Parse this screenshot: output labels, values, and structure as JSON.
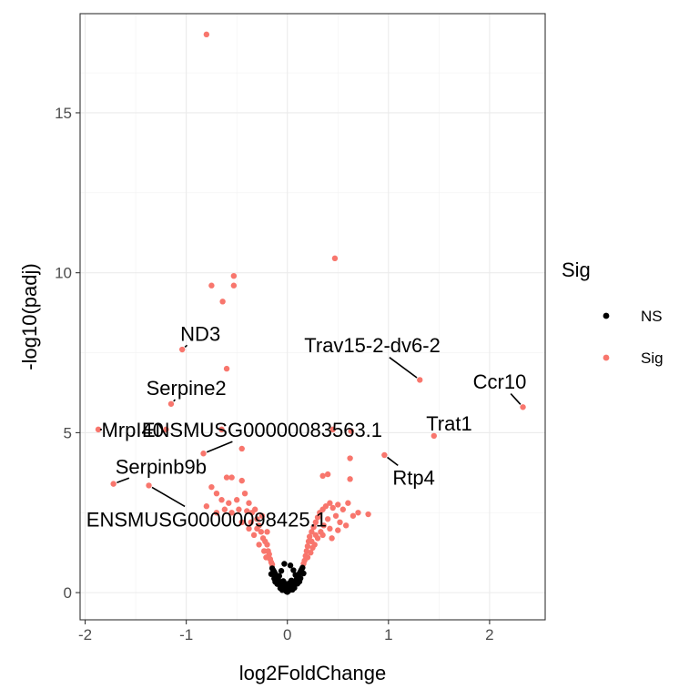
{
  "chart_data": {
    "type": "scatter",
    "xlabel": "log2FoldChange",
    "ylabel": "-log10(padj)",
    "xlim": [
      -2.05,
      2.55
    ],
    "ylim": [
      -0.85,
      18.1
    ],
    "x_ticks": [
      -2,
      -1,
      0,
      1,
      2
    ],
    "y_ticks": [
      0,
      5,
      10,
      15
    ],
    "grid": true,
    "legend": {
      "title": "Sig",
      "placement": "right",
      "entries": [
        {
          "name": "NS",
          "color": "#000000"
        },
        {
          "name": "Sig",
          "color": "#F8766D"
        }
      ]
    },
    "series": [
      {
        "name": "NS",
        "color": "#000000",
        "points": [
          [
            0.0,
            0.02
          ],
          [
            0.01,
            0.05
          ],
          [
            -0.01,
            0.04
          ],
          [
            0.02,
            0.08
          ],
          [
            -0.02,
            0.07
          ],
          [
            0.03,
            0.12
          ],
          [
            -0.03,
            0.11
          ],
          [
            0.04,
            0.16
          ],
          [
            -0.04,
            0.15
          ],
          [
            0.05,
            0.2
          ],
          [
            -0.05,
            0.19
          ],
          [
            0.06,
            0.25
          ],
          [
            -0.06,
            0.24
          ],
          [
            0.07,
            0.3
          ],
          [
            -0.07,
            0.29
          ],
          [
            0.08,
            0.35
          ],
          [
            -0.08,
            0.34
          ],
          [
            0.09,
            0.41
          ],
          [
            -0.09,
            0.4
          ],
          [
            0.1,
            0.47
          ],
          [
            -0.1,
            0.46
          ],
          [
            0.11,
            0.53
          ],
          [
            -0.11,
            0.52
          ],
          [
            0.12,
            0.6
          ],
          [
            -0.12,
            0.59
          ],
          [
            0.13,
            0.66
          ],
          [
            -0.13,
            0.65
          ],
          [
            0.14,
            0.72
          ],
          [
            -0.14,
            0.7
          ],
          [
            0.15,
            0.78
          ],
          [
            -0.15,
            0.76
          ],
          [
            0.13,
            0.45
          ],
          [
            -0.13,
            0.44
          ],
          [
            0.1,
            0.28
          ],
          [
            -0.1,
            0.27
          ],
          [
            0.07,
            0.15
          ],
          [
            -0.07,
            0.14
          ],
          [
            0.05,
            0.09
          ],
          [
            -0.05,
            0.08
          ],
          [
            0.12,
            0.35
          ],
          [
            -0.12,
            0.34
          ],
          [
            0.0,
            0.1
          ],
          [
            0.01,
            0.2
          ],
          [
            -0.01,
            0.18
          ],
          [
            0.02,
            0.3
          ],
          [
            -0.02,
            0.28
          ],
          [
            0.16,
            0.6
          ],
          [
            -0.16,
            0.58
          ],
          [
            0.08,
            0.55
          ],
          [
            -0.08,
            0.52
          ],
          [
            0.04,
            0.38
          ],
          [
            -0.04,
            0.36
          ],
          [
            0.0,
            0.25
          ],
          [
            -0.03,
            0.9
          ],
          [
            0.03,
            0.85
          ],
          [
            0.06,
            0.7
          ],
          [
            -0.06,
            0.68
          ]
        ]
      },
      {
        "name": "Sig",
        "color": "#F8766D",
        "points": [
          [
            -0.8,
            17.45
          ],
          [
            0.47,
            10.45
          ],
          [
            -0.53,
            9.9
          ],
          [
            -0.75,
            9.6
          ],
          [
            -0.53,
            9.6
          ],
          [
            -0.64,
            9.1
          ],
          [
            -1.04,
            7.6
          ],
          [
            1.31,
            6.65
          ],
          [
            -0.6,
            7.0
          ],
          [
            -1.15,
            5.9
          ],
          [
            2.33,
            5.8
          ],
          [
            -1.87,
            5.1
          ],
          [
            -1.2,
            5.1
          ],
          [
            -0.65,
            5.1
          ],
          [
            0.45,
            5.1
          ],
          [
            0.63,
            5.05
          ],
          [
            1.45,
            4.9
          ],
          [
            -0.83,
            4.35
          ],
          [
            0.96,
            4.3
          ],
          [
            -0.45,
            4.5
          ],
          [
            0.62,
            4.2
          ],
          [
            -1.37,
            3.35
          ],
          [
            -1.72,
            3.4
          ],
          [
            0.62,
            3.55
          ],
          [
            0.35,
            3.65
          ],
          [
            0.4,
            3.7
          ],
          [
            0.8,
            2.45
          ],
          [
            -0.75,
            3.3
          ],
          [
            -0.6,
            3.6
          ],
          [
            -0.55,
            3.6
          ],
          [
            -0.45,
            3.5
          ],
          [
            -0.7,
            3.1
          ],
          [
            -0.65,
            2.9
          ],
          [
            -0.58,
            2.8
          ],
          [
            -0.5,
            2.9
          ],
          [
            -0.42,
            3.1
          ],
          [
            -0.38,
            2.8
          ],
          [
            -0.35,
            2.5
          ],
          [
            -0.32,
            2.6
          ],
          [
            -0.3,
            2.3
          ],
          [
            -0.28,
            2.1
          ],
          [
            -0.26,
            1.9
          ],
          [
            -0.24,
            1.7
          ],
          [
            -0.22,
            1.6
          ],
          [
            -0.2,
            1.5
          ],
          [
            -0.19,
            1.3
          ],
          [
            -0.18,
            1.2
          ],
          [
            -0.17,
            1.05
          ],
          [
            -0.25,
            2.4
          ],
          [
            -0.3,
            2.0
          ],
          [
            -0.33,
            1.8
          ],
          [
            -0.36,
            2.2
          ],
          [
            -0.4,
            2.55
          ],
          [
            -0.48,
            2.6
          ],
          [
            -0.55,
            2.5
          ],
          [
            -0.62,
            2.6
          ],
          [
            -0.7,
            2.5
          ],
          [
            -0.8,
            2.7
          ],
          [
            -0.45,
            2.2
          ],
          [
            -0.38,
            2.0
          ],
          [
            -0.28,
            1.5
          ],
          [
            -0.23,
            1.3
          ],
          [
            -0.21,
            1.1
          ],
          [
            -0.2,
            1.9
          ],
          [
            -0.16,
            0.95
          ],
          [
            0.17,
            1.0
          ],
          [
            0.18,
            1.15
          ],
          [
            0.19,
            1.3
          ],
          [
            0.2,
            1.45
          ],
          [
            0.21,
            1.6
          ],
          [
            0.22,
            1.75
          ],
          [
            0.24,
            1.9
          ],
          [
            0.26,
            2.05
          ],
          [
            0.28,
            2.2
          ],
          [
            0.3,
            2.35
          ],
          [
            0.32,
            2.5
          ],
          [
            0.35,
            2.6
          ],
          [
            0.38,
            2.7
          ],
          [
            0.42,
            2.8
          ],
          [
            0.45,
            2.65
          ],
          [
            0.5,
            2.75
          ],
          [
            0.55,
            2.6
          ],
          [
            0.6,
            2.8
          ],
          [
            0.48,
            2.4
          ],
          [
            0.4,
            2.3
          ],
          [
            0.36,
            2.1
          ],
          [
            0.33,
            1.9
          ],
          [
            0.3,
            1.7
          ],
          [
            0.27,
            1.5
          ],
          [
            0.25,
            1.4
          ],
          [
            0.23,
            1.25
          ],
          [
            0.2,
            1.1
          ],
          [
            0.35,
            1.8
          ],
          [
            0.42,
            2.0
          ],
          [
            0.52,
            2.2
          ],
          [
            0.58,
            2.1
          ],
          [
            0.65,
            2.4
          ],
          [
            0.7,
            2.5
          ],
          [
            0.28,
            1.8
          ],
          [
            0.24,
            1.6
          ],
          [
            -0.15,
            0.88
          ],
          [
            0.16,
            0.9
          ],
          [
            0.5,
            1.95
          ],
          [
            0.44,
            1.7
          ]
        ]
      }
    ],
    "labels": [
      {
        "text": "ND3",
        "x": -1.04,
        "y": 7.6,
        "lx": -0.86,
        "ly": 8.1
      },
      {
        "text": "Serpine2",
        "x": -1.15,
        "y": 5.9,
        "lx": -1.0,
        "ly": 6.4
      },
      {
        "text": "Trav15-2-dv6-2",
        "x": 1.31,
        "y": 6.65,
        "lx": 0.84,
        "ly": 7.75
      },
      {
        "text": "Ccr10",
        "x": 2.33,
        "y": 5.8,
        "lx": 2.1,
        "ly": 6.6
      },
      {
        "text": "Trat1",
        "x": 1.45,
        "y": 4.9,
        "lx": 1.6,
        "ly": 5.3
      },
      {
        "text": "MrpI40",
        "x": -1.87,
        "y": 5.1,
        "lx": -1.53,
        "ly": 5.1
      },
      {
        "text": "ENSMUSG00000083563.1",
        "x": -0.83,
        "y": 4.35,
        "lx": -0.25,
        "ly": 5.1
      },
      {
        "text": "Rtp4",
        "x": 0.96,
        "y": 4.3,
        "lx": 1.25,
        "ly": 3.6
      },
      {
        "text": "Serpinb9b",
        "x": -1.72,
        "y": 3.4,
        "lx": -1.25,
        "ly": 3.95
      },
      {
        "text": "ENSMUSG00000098425.1",
        "x": -1.37,
        "y": 3.35,
        "lx": -0.8,
        "ly": 2.3
      }
    ]
  }
}
